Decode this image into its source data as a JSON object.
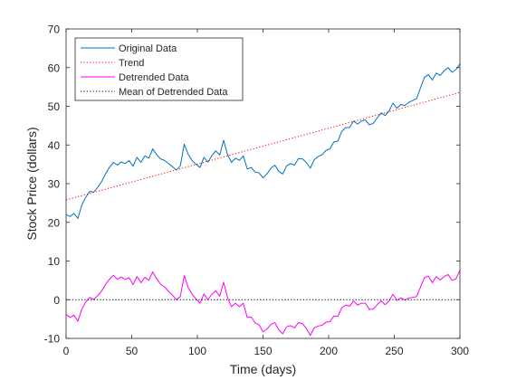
{
  "chart_data": {
    "type": "line",
    "xlabel": "Time (days)",
    "ylabel": "Stock Price (dollars)",
    "xlim": [
      0,
      300
    ],
    "ylim": [
      -10,
      70
    ],
    "xticks": [
      0,
      50,
      100,
      150,
      200,
      250,
      300
    ],
    "yticks": [
      -10,
      0,
      10,
      20,
      30,
      40,
      50,
      60,
      70
    ],
    "grid": false,
    "legend_position": "top-left",
    "series": [
      {
        "name": "Original Data",
        "style": "solid",
        "color": "#0072BD",
        "x": [
          0,
          3,
          6,
          9,
          12,
          15,
          18,
          21,
          24,
          27,
          30,
          33,
          36,
          39,
          42,
          45,
          48,
          51,
          54,
          57,
          60,
          63,
          66,
          69,
          72,
          75,
          78,
          81,
          84,
          87,
          90,
          93,
          96,
          99,
          102,
          105,
          108,
          111,
          114,
          117,
          120,
          123,
          126,
          129,
          132,
          135,
          138,
          141,
          144,
          147,
          150,
          153,
          156,
          159,
          162,
          165,
          168,
          171,
          174,
          177,
          180,
          183,
          186,
          189,
          192,
          195,
          198,
          201,
          204,
          207,
          210,
          213,
          216,
          219,
          222,
          225,
          228,
          231,
          234,
          237,
          240,
          243,
          246,
          249,
          252,
          255,
          258,
          261,
          264,
          267,
          270,
          273,
          276,
          279,
          282,
          285,
          288,
          291,
          294,
          297,
          300
        ],
        "y": [
          22,
          21.5,
          22.3,
          21,
          24.5,
          26.5,
          28,
          27.8,
          29,
          30.5,
          32.5,
          34.2,
          35.5,
          34.8,
          35.6,
          35.2,
          36,
          34.5,
          36.8,
          35.5,
          37.2,
          36.6,
          39,
          37.5,
          36.4,
          36,
          35.2,
          34.4,
          33.5,
          34.6,
          40.2,
          37.6,
          36,
          35,
          34.2,
          36.8,
          35.6,
          37.2,
          38.5,
          37.4,
          41.2,
          37.5,
          35.5,
          36.6,
          36,
          37.2,
          33.8,
          34.2,
          33,
          32.8,
          31.5,
          32.5,
          34,
          34.8,
          33.2,
          32.5,
          34.6,
          35.2,
          34.8,
          36.5,
          36.4,
          35.5,
          34,
          36.2,
          37,
          37.5,
          38.6,
          39,
          40.8,
          41,
          43.5,
          44.5,
          44.5,
          46.2,
          45.4,
          46.2,
          46.5,
          45.2,
          45.6,
          47,
          48.3,
          47.6,
          48.8,
          50.8,
          49.5,
          50.5,
          50.2,
          51,
          51.5,
          52,
          54.8,
          57.5,
          58.2,
          56.8,
          58.6,
          58,
          59.2,
          60,
          58.8,
          59.5,
          61
        ]
      },
      {
        "name": "Trend",
        "style": "dotted",
        "color": "#FF0000",
        "x": [
          0,
          300
        ],
        "y": [
          25.8,
          53.6
        ]
      },
      {
        "name": "Detrended Data",
        "style": "solid",
        "color": "#FF00FF",
        "x": [
          0,
          3,
          6,
          9,
          12,
          15,
          18,
          21,
          24,
          27,
          30,
          33,
          36,
          39,
          42,
          45,
          48,
          51,
          54,
          57,
          60,
          63,
          66,
          69,
          72,
          75,
          78,
          81,
          84,
          87,
          90,
          93,
          96,
          99,
          102,
          105,
          108,
          111,
          114,
          117,
          120,
          123,
          126,
          129,
          132,
          135,
          138,
          141,
          144,
          147,
          150,
          153,
          156,
          159,
          162,
          165,
          168,
          171,
          174,
          177,
          180,
          183,
          186,
          189,
          192,
          195,
          198,
          201,
          204,
          207,
          210,
          213,
          216,
          219,
          222,
          225,
          228,
          231,
          234,
          237,
          240,
          243,
          246,
          249,
          252,
          255,
          258,
          261,
          264,
          267,
          270,
          273,
          276,
          279,
          282,
          285,
          288,
          291,
          294,
          297,
          300
        ],
        "y": [
          -3.8,
          -4.6,
          -4,
          -5.6,
          -2.4,
          -0.6,
          0.6,
          0.1,
          1,
          2.2,
          3.9,
          5.3,
          6.3,
          5.3,
          5.9,
          5.2,
          5.7,
          3.9,
          6,
          4.4,
          5.8,
          5,
          7.2,
          5.4,
          4,
          3.3,
          2.2,
          1.2,
          0,
          0.8,
          6.2,
          3.2,
          1.4,
          0.2,
          -0.9,
          1.5,
          0,
          1.4,
          2.3,
          0.9,
          4.5,
          0.5,
          -1.8,
          -0.9,
          -1.8,
          -0.9,
          -4.6,
          -4.5,
          -6,
          -6.5,
          -8.3,
          -7.6,
          -6.4,
          -5.9,
          -7.8,
          -8.8,
          -7,
          -6.7,
          -7.3,
          -5.9,
          -6.2,
          -7.4,
          -9.2,
          -7.3,
          -6.8,
          -6.6,
          -5.8,
          -5.7,
          -4.2,
          -4.3,
          -2.1,
          -1.4,
          -1.7,
          -0.3,
          -1.4,
          -0.9,
          -0.9,
          -2.5,
          -2.4,
          -1.3,
          -0.3,
          -1.3,
          -0.3,
          1.4,
          -0.2,
          0.5,
          -0.1,
          0.4,
          0.6,
          0.8,
          3.3,
          5.7,
          6.1,
          4.4,
          6,
          5.1,
          6,
          6.5,
          5,
          5.4,
          7.6
        ]
      },
      {
        "name": "Mean of Detrended Data",
        "style": "dotted",
        "color": "#000000",
        "x": [
          0,
          300
        ],
        "y": [
          0,
          0
        ]
      }
    ]
  }
}
